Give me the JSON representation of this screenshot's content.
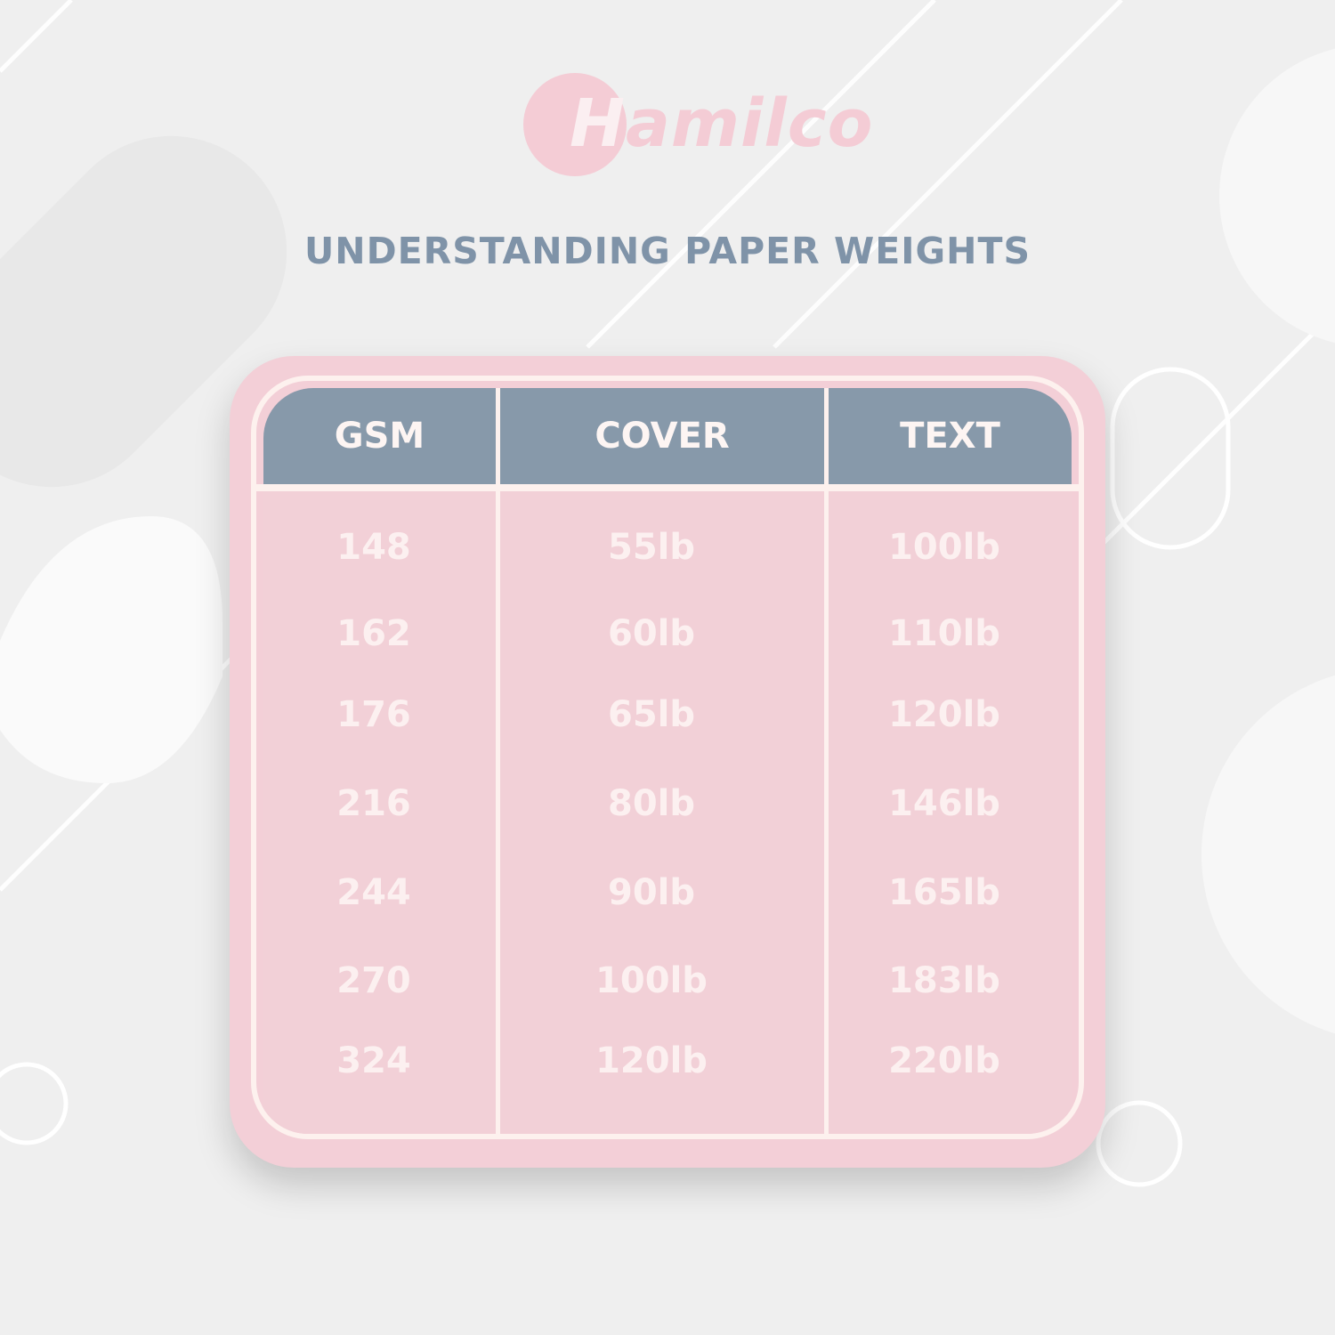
{
  "brand": {
    "logo_text": "Hamilco",
    "color": "#f4ccd5"
  },
  "title": "UNDERSTANDING PAPER WEIGHTS",
  "colors": {
    "header": "#8799aa",
    "table": "#f3cfd7",
    "title": "#7f93a8"
  },
  "table": {
    "headers": [
      "GSM",
      "COVER",
      "TEXT"
    ],
    "rows": [
      [
        "148",
        "55lb",
        "100lb"
      ],
      [
        "162",
        "60lb",
        "110lb"
      ],
      [
        "176",
        "65lb",
        "120lb"
      ],
      [
        "216",
        "80lb",
        "146lb"
      ],
      [
        "244",
        "90lb",
        "165lb"
      ],
      [
        "270",
        "100lb",
        "183lb"
      ],
      [
        "324",
        "120lb",
        "220lb"
      ]
    ]
  }
}
